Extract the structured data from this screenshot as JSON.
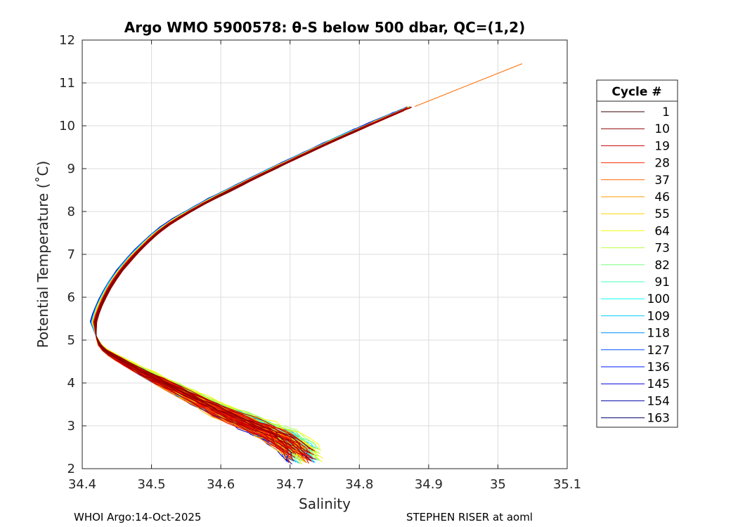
{
  "chart_data": {
    "type": "line",
    "title": "Argo WMO 5900578: θ-S below 500 dbar,  QC=(1,2)",
    "xlabel": "Salinity",
    "ylabel": "Potential Temperature (˚C)",
    "xlim": [
      34.4,
      35.1
    ],
    "ylim": [
      2,
      12
    ],
    "xticks": [
      34.4,
      34.5,
      34.6,
      34.7,
      34.8,
      34.9,
      35,
      35.1
    ],
    "xtick_labels": [
      "34.4",
      "34.5",
      "34.6",
      "34.7",
      "34.8",
      "34.9",
      "35",
      "35.1"
    ],
    "yticks": [
      2,
      3,
      4,
      5,
      6,
      7,
      8,
      9,
      10,
      11,
      12
    ],
    "ytick_labels": [
      "2",
      "3",
      "4",
      "5",
      "6",
      "7",
      "8",
      "9",
      "10",
      "11",
      "12"
    ],
    "grid": true,
    "legend_title": "Cycle #",
    "legend_position": "right, outside",
    "colormap": "jet",
    "series": [
      {
        "name": "1",
        "color": "#3a0000"
      },
      {
        "name": "10",
        "color": "#8a0000"
      },
      {
        "name": "19",
        "color": "#c80000"
      },
      {
        "name": "28",
        "color": "#ff2a00"
      },
      {
        "name": "37",
        "color": "#ff6400"
      },
      {
        "name": "46",
        "color": "#ff9a00"
      },
      {
        "name": "55",
        "color": "#ffd200"
      },
      {
        "name": "64",
        "color": "#f2ff0c"
      },
      {
        "name": "73",
        "color": "#b8ff46"
      },
      {
        "name": "82",
        "color": "#7eff80"
      },
      {
        "name": "91",
        "color": "#44ffba"
      },
      {
        "name": "100",
        "color": "#0cfff2"
      },
      {
        "name": "109",
        "color": "#00c8ff"
      },
      {
        "name": "118",
        "color": "#008eff"
      },
      {
        "name": "127",
        "color": "#0054ff"
      },
      {
        "name": "136",
        "color": "#001aff"
      },
      {
        "name": "145",
        "color": "#0000e0"
      },
      {
        "name": "154",
        "color": "#0000a6"
      },
      {
        "name": "163",
        "color": "#00006c"
      }
    ],
    "upper_curve": {
      "salinity": [
        34.42,
        34.43,
        34.45,
        34.48,
        34.52,
        34.57,
        34.63,
        34.7,
        34.78,
        34.88
      ],
      "theta": [
        5.3,
        5.8,
        6.4,
        7.0,
        7.6,
        8.1,
        8.6,
        9.15,
        9.75,
        10.45
      ]
    },
    "lower_curve": {
      "salinity": [
        34.72,
        34.69,
        34.65,
        34.6,
        34.55,
        34.5,
        34.46,
        34.43,
        34.42
      ],
      "theta": [
        2.3,
        2.7,
        3.0,
        3.35,
        3.75,
        4.15,
        4.5,
        4.8,
        5.1
      ]
    },
    "extension_segment": {
      "salinity": [
        34.88,
        35.035
      ],
      "theta": [
        10.45,
        11.45
      ]
    }
  },
  "footer": {
    "left": "WHOI Argo:14-Oct-2025",
    "right": "STEPHEN RISER at aoml"
  }
}
